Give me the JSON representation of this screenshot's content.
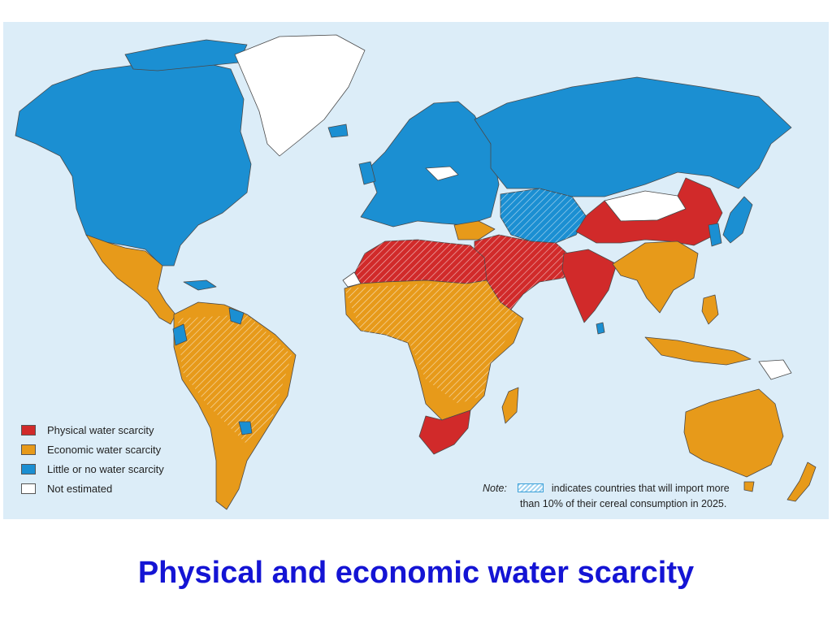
{
  "title": "Physical and economic water scarcity",
  "legend": {
    "items": [
      {
        "label": "Physical water scarcity",
        "color": "#d12a2a"
      },
      {
        "label": "Economic water scarcity",
        "color": "#e79a1a"
      },
      {
        "label": "Little or no water scarcity",
        "color": "#1b8fd2"
      },
      {
        "label": "Not estimated",
        "color": "#ffffff"
      }
    ]
  },
  "note": {
    "label": "Note:",
    "line1": "indicates countries that will import more",
    "line2": "than 10% of their cereal consumption in 2025.",
    "hatch_color": "#9fd2f0"
  },
  "map": {
    "ocean_color": "#dcedf8",
    "regions": [
      {
        "name": "North America",
        "category": "Little or no water scarcity"
      },
      {
        "name": "Greenland",
        "category": "Not estimated"
      },
      {
        "name": "Mexico and Central America",
        "category": "Economic water scarcity"
      },
      {
        "name": "South America",
        "category": "Economic water scarcity"
      },
      {
        "name": "Europe",
        "category": "Little or no water scarcity"
      },
      {
        "name": "Russia",
        "category": "Little or no water scarcity"
      },
      {
        "name": "North Africa",
        "category": "Physical water scarcity"
      },
      {
        "name": "Sub-Saharan Africa",
        "category": "Economic water scarcity"
      },
      {
        "name": "South Africa",
        "category": "Physical water scarcity"
      },
      {
        "name": "Middle East",
        "category": "Physical water scarcity"
      },
      {
        "name": "Central Asia",
        "category": "Little or no water scarcity"
      },
      {
        "name": "India",
        "category": "Physical water scarcity"
      },
      {
        "name": "China",
        "category": "Physical water scarcity"
      },
      {
        "name": "Mongolia",
        "category": "Not estimated"
      },
      {
        "name": "Southeast Asia",
        "category": "Economic water scarcity"
      },
      {
        "name": "Australia",
        "category": "Economic water scarcity"
      },
      {
        "name": "New Zealand",
        "category": "Economic water scarcity"
      }
    ]
  }
}
